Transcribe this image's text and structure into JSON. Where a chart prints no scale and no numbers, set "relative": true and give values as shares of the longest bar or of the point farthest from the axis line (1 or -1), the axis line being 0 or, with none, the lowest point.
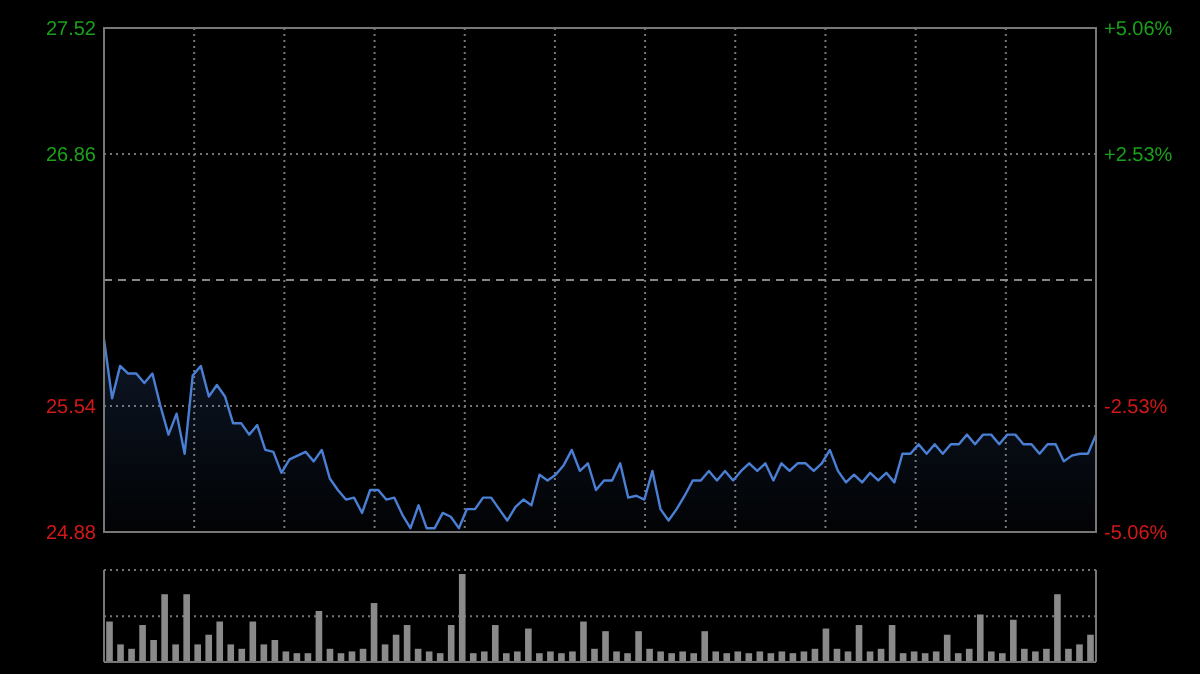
{
  "chart_data": [
    {
      "type": "area",
      "categories": [
        null,
        null,
        null,
        null,
        null,
        null,
        null,
        null,
        null,
        null,
        null,
        null,
        null,
        null,
        null,
        null,
        null,
        null,
        null,
        null,
        null,
        null,
        null,
        null,
        null,
        null,
        null,
        null,
        null,
        null,
        null,
        null,
        null,
        null,
        null,
        null,
        null,
        null,
        null,
        null,
        null,
        null,
        null,
        null,
        null,
        null,
        null,
        null,
        null,
        null,
        null,
        null,
        null,
        null,
        null,
        null,
        null,
        null,
        null,
        null,
        null,
        null,
        null,
        null,
        null,
        null,
        null,
        null,
        null,
        null,
        null,
        null,
        null,
        null,
        null,
        null,
        null,
        null,
        null,
        null,
        null,
        null,
        null,
        null,
        null,
        null,
        null,
        null,
        null,
        null,
        null,
        null,
        null,
        null,
        null,
        null,
        null,
        null,
        null,
        null,
        null,
        null,
        null,
        null,
        null,
        null,
        null,
        null,
        null,
        null,
        null,
        null,
        null,
        null,
        null,
        null,
        null,
        null,
        null,
        null,
        null,
        null,
        null,
        null
      ],
      "ylim": [
        24.88,
        27.52
      ],
      "yticks": [
        24.88,
        25.54,
        26.86,
        27.52
      ],
      "y2lim": [
        -5.06,
        5.06
      ],
      "y2ticks": [
        {
          "value": -5.06,
          "label": "-5.06%"
        },
        {
          "value": -2.53,
          "label": "-2.53%"
        },
        {
          "value": 2.53,
          "label": "+2.53%"
        },
        {
          "value": 5.06,
          "label": "+5.06%"
        }
      ],
      "tick_labels": "y",
      "grid": true,
      "ref_lines": [
        {
          "axis": "y",
          "value": 26.2,
          "line_style": "dashed"
        }
      ],
      "series": [
        {
          "color": "#4a7fd4",
          "values": [
            25.89,
            25.58,
            25.75,
            25.71,
            25.71,
            25.66,
            25.71,
            25.54,
            25.39,
            25.5,
            25.29,
            25.7,
            25.75,
            25.59,
            25.65,
            25.59,
            25.45,
            25.45,
            25.39,
            25.44,
            25.31,
            25.3,
            25.19,
            25.26,
            25.28,
            25.3,
            25.25,
            25.31,
            25.16,
            25.1,
            25.05,
            25.06,
            24.98,
            25.1,
            25.1,
            25.05,
            25.06,
            24.97,
            24.9,
            25.02,
            24.9,
            24.9,
            24.98,
            24.96,
            24.9,
            25.0,
            25.0,
            25.06,
            25.06,
            25.0,
            24.94,
            25.01,
            25.05,
            25.02,
            25.18,
            25.15,
            25.18,
            25.23,
            25.31,
            25.2,
            25.24,
            25.1,
            25.15,
            25.15,
            25.24,
            25.06,
            25.07,
            25.05,
            25.2,
            25.0,
            24.94,
            25.0,
            25.07,
            25.15,
            25.15,
            25.2,
            25.15,
            25.2,
            25.15,
            25.2,
            25.24,
            25.2,
            25.24,
            25.15,
            25.24,
            25.2,
            25.24,
            25.24,
            25.2,
            25.24,
            25.31,
            25.2,
            25.14,
            25.18,
            25.14,
            25.19,
            25.15,
            25.19,
            25.14,
            25.29,
            25.29,
            25.34,
            25.29,
            25.34,
            25.29,
            25.34,
            25.34,
            25.39,
            25.34,
            25.39,
            25.39,
            25.34,
            25.39,
            25.39,
            25.34,
            25.34,
            25.29,
            25.34,
            25.34,
            25.25,
            25.28,
            25.29,
            25.29,
            25.39
          ]
        }
      ]
    },
    {
      "type": "bar",
      "relative": true,
      "tick_labels": false,
      "color": "#8a8a8a",
      "ref_lines": [
        {
          "axis": "y",
          "value": 0.52,
          "line_style": "dotted"
        }
      ],
      "categories": [
        null,
        null,
        null,
        null,
        null,
        null,
        null,
        null,
        null,
        null,
        null,
        null,
        null,
        null,
        null,
        null,
        null,
        null,
        null,
        null,
        null,
        null,
        null,
        null,
        null,
        null,
        null,
        null,
        null,
        null,
        null,
        null,
        null,
        null,
        null,
        null,
        null,
        null,
        null,
        null,
        null,
        null,
        null,
        null,
        null,
        null,
        null,
        null,
        null,
        null,
        null,
        null,
        null,
        null,
        null,
        null,
        null,
        null,
        null,
        null,
        null,
        null,
        null,
        null,
        null,
        null,
        null,
        null,
        null,
        null,
        null,
        null,
        null,
        null,
        null,
        null,
        null,
        null,
        null,
        null,
        null,
        null,
        null,
        null,
        null,
        null,
        null,
        null,
        null,
        null
      ],
      "values": [
        0.46,
        0.2,
        0.15,
        0.42,
        0.25,
        0.77,
        0.2,
        0.77,
        0.2,
        0.31,
        0.46,
        0.2,
        0.15,
        0.46,
        0.2,
        0.25,
        0.12,
        0.1,
        0.1,
        0.58,
        0.15,
        0.1,
        0.12,
        0.15,
        0.67,
        0.2,
        0.31,
        0.42,
        0.15,
        0.12,
        0.1,
        0.42,
        1,
        0.1,
        0.12,
        0.42,
        0.1,
        0.12,
        0.38,
        0.1,
        0.12,
        0.1,
        0.12,
        0.46,
        0.15,
        0.35,
        0.12,
        0.1,
        0.35,
        0.15,
        0.12,
        0.1,
        0.12,
        0.1,
        0.35,
        0.12,
        0.1,
        0.12,
        0.1,
        0.12,
        0.1,
        0.12,
        0.1,
        0.12,
        0.15,
        0.38,
        0.15,
        0.12,
        0.42,
        0.12,
        0.15,
        0.42,
        0.1,
        0.12,
        0.1,
        0.12,
        0.31,
        0.1,
        0.15,
        0.54,
        0.12,
        0.1,
        0.48,
        0.15,
        0.12,
        0.15,
        0.77,
        0.15,
        0.2,
        0.31
      ]
    }
  ]
}
